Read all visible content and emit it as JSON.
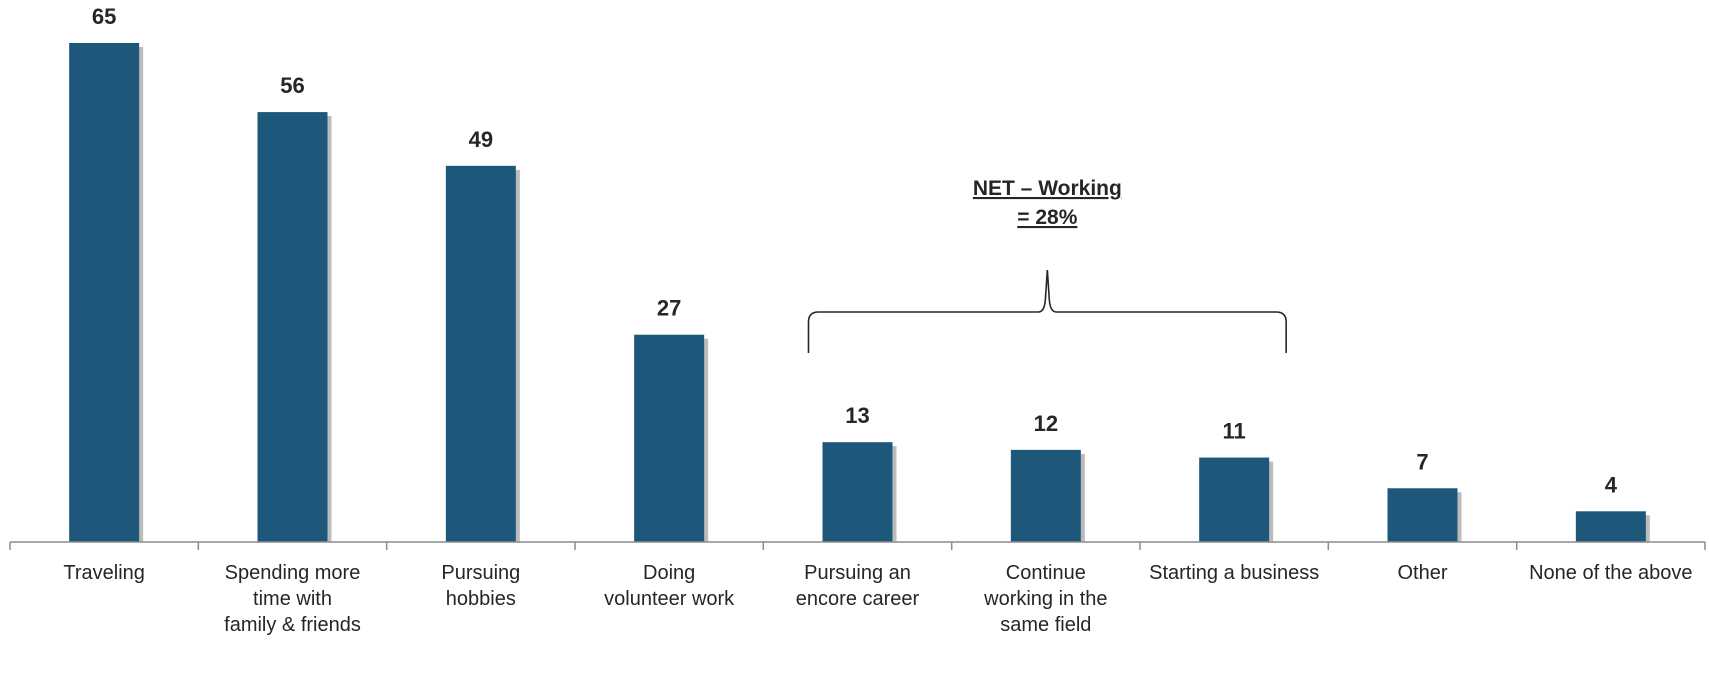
{
  "chart_data": {
    "type": "bar",
    "title": "",
    "xlabel": "",
    "ylabel": "",
    "ylim": [
      0,
      65
    ],
    "grid": false,
    "legend": "none",
    "bar_color": "#1d587b",
    "categories": [
      "Traveling",
      "Spending more time with family & friends",
      "Pursuing hobbies",
      "Doing volunteer work",
      "Pursuing an encore career",
      "Continue working in the same field",
      "Starting a business",
      "Other",
      "None of the above"
    ],
    "category_lines": [
      [
        "Traveling"
      ],
      [
        "Spending more",
        "time with",
        "family & friends"
      ],
      [
        "Pursuing",
        "hobbies"
      ],
      [
        "Doing",
        "volunteer work"
      ],
      [
        "Pursuing an",
        "encore career"
      ],
      [
        "Continue",
        "working in the",
        "same field"
      ],
      [
        "Starting a business"
      ],
      [
        "Other"
      ],
      [
        "None of the above"
      ]
    ],
    "values": [
      65,
      56,
      49,
      27,
      13,
      12,
      11,
      7,
      4
    ],
    "annotations": [
      {
        "lines": [
          "NET – Working",
          "= 28%"
        ],
        "brace_from_category": 4,
        "brace_to_category": 6
      }
    ]
  }
}
